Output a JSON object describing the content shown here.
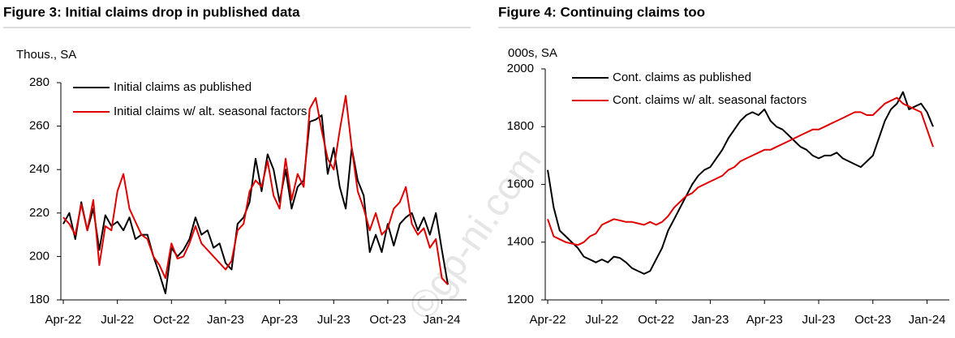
{
  "chart_data": [
    {
      "type": "line",
      "title": "Figure 3: Initial claims drop in published data",
      "y_label": "Thous., SA",
      "categories": [
        "Apr-22",
        null,
        null,
        null,
        null,
        null,
        null,
        null,
        null,
        "Jul-22",
        null,
        null,
        null,
        null,
        null,
        null,
        null,
        null,
        "Oct-22",
        null,
        null,
        null,
        null,
        null,
        null,
        null,
        null,
        "Jan-23",
        null,
        null,
        null,
        null,
        null,
        null,
        null,
        null,
        "Apr-23",
        null,
        null,
        null,
        null,
        null,
        null,
        null,
        null,
        "Jul-23",
        null,
        null,
        null,
        null,
        null,
        null,
        null,
        null,
        "Oct-23",
        null,
        null,
        null,
        null,
        null,
        null,
        null,
        null,
        "Jan-24",
        null
      ],
      "ylim": [
        180,
        280
      ],
      "yticks": [
        180,
        200,
        220,
        240,
        260,
        280
      ],
      "series": [
        {
          "name": "Initial claims as published",
          "color": "#000000",
          "values": [
            215,
            220,
            208,
            225,
            212,
            222,
            203,
            219,
            214,
            216,
            212,
            218,
            208,
            210,
            210,
            200,
            192,
            183,
            204,
            200,
            203,
            208,
            218,
            210,
            212,
            204,
            206,
            197,
            194,
            215,
            218,
            225,
            245,
            230,
            247,
            240,
            225,
            240,
            222,
            232,
            235,
            262,
            263,
            265,
            238,
            250,
            232,
            222,
            250,
            235,
            228,
            202,
            210,
            202,
            215,
            205,
            215,
            218,
            220,
            212,
            218,
            210,
            220,
            203,
            187
          ]
        },
        {
          "name": "Initial claims w/ alt. seasonal factors",
          "color": "#e00000",
          "values": [
            218,
            215,
            210,
            224,
            212,
            226,
            196,
            214,
            212,
            230,
            238,
            222,
            216,
            210,
            208,
            200,
            196,
            190,
            206,
            199,
            200,
            206,
            214,
            206,
            203,
            200,
            197,
            194,
            198,
            212,
            215,
            230,
            235,
            232,
            244,
            228,
            222,
            245,
            226,
            238,
            232,
            268,
            273,
            258,
            245,
            240,
            258,
            274,
            250,
            230,
            222,
            212,
            220,
            210,
            213,
            222,
            225,
            232,
            215,
            210,
            213,
            204,
            208,
            190,
            187
          ]
        }
      ]
    },
    {
      "type": "line",
      "title": "Figure 4: Continuing claims too",
      "y_label": "000s, SA",
      "categories": [
        "Apr-22",
        null,
        null,
        null,
        null,
        null,
        null,
        null,
        null,
        "Jul-22",
        null,
        null,
        null,
        null,
        null,
        null,
        null,
        null,
        "Oct-22",
        null,
        null,
        null,
        null,
        null,
        null,
        null,
        null,
        "Jan-23",
        null,
        null,
        null,
        null,
        null,
        null,
        null,
        null,
        "Apr-23",
        null,
        null,
        null,
        null,
        null,
        null,
        null,
        null,
        "Jul-23",
        null,
        null,
        null,
        null,
        null,
        null,
        null,
        null,
        "Oct-23",
        null,
        null,
        null,
        null,
        null,
        null,
        null,
        null,
        "Jan-24",
        null
      ],
      "ylim": [
        1200,
        2000
      ],
      "yticks": [
        1200,
        1400,
        1600,
        1800,
        2000
      ],
      "series": [
        {
          "name": "Cont. claims as published",
          "color": "#000000",
          "values": [
            1650,
            1520,
            1440,
            1420,
            1400,
            1380,
            1350,
            1340,
            1330,
            1340,
            1330,
            1350,
            1345,
            1330,
            1310,
            1300,
            1290,
            1300,
            1340,
            1380,
            1440,
            1480,
            1520,
            1560,
            1600,
            1630,
            1650,
            1660,
            1690,
            1720,
            1760,
            1790,
            1820,
            1840,
            1850,
            1840,
            1860,
            1820,
            1800,
            1790,
            1770,
            1750,
            1730,
            1720,
            1700,
            1690,
            1700,
            1700,
            1710,
            1690,
            1680,
            1670,
            1660,
            1680,
            1700,
            1760,
            1820,
            1860,
            1880,
            1920,
            1860,
            1870,
            1880,
            1850,
            1800
          ]
        },
        {
          "name": "Cont. claims w/ alt. seasonal factors",
          "color": "#e00000",
          "values": [
            1480,
            1420,
            1410,
            1400,
            1395,
            1390,
            1400,
            1420,
            1430,
            1460,
            1470,
            1480,
            1475,
            1470,
            1470,
            1465,
            1460,
            1470,
            1460,
            1470,
            1490,
            1520,
            1540,
            1560,
            1570,
            1590,
            1600,
            1610,
            1620,
            1630,
            1650,
            1660,
            1680,
            1690,
            1700,
            1710,
            1720,
            1720,
            1730,
            1740,
            1750,
            1760,
            1770,
            1780,
            1790,
            1790,
            1800,
            1810,
            1820,
            1830,
            1840,
            1850,
            1850,
            1840,
            1840,
            1860,
            1880,
            1890,
            1900,
            1880,
            1870,
            1860,
            1850,
            1790,
            1730
          ]
        }
      ]
    }
  ],
  "watermark": "©gp-ni.com"
}
